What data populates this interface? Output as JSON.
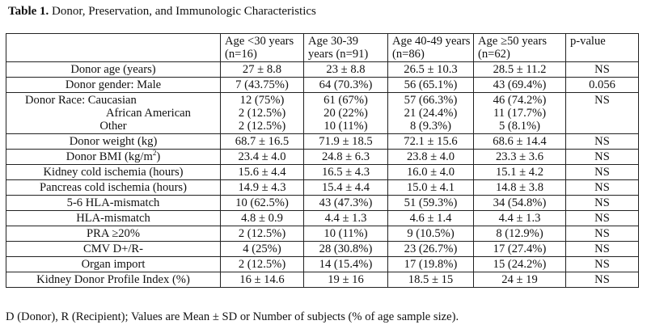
{
  "caption": {
    "label": "Table 1.",
    "text": "Donor, Preservation, and Immunologic Characteristics"
  },
  "columns": [
    "",
    "Age <30 years (n=16)",
    "Age 30-39 years (n=91)",
    "Age 40-49 years (n=86)",
    "Age ≥50 years (n=62)",
    "p-value"
  ],
  "rows": [
    {
      "label": "Donor age (years)",
      "cells": [
        "27 ± 8.8",
        "23 ± 8.8",
        "26.5 ± 10.3",
        "28.5 ± 11.2",
        "NS"
      ]
    },
    {
      "label": "Donor gender: Male",
      "cells": [
        "7 (43.75%)",
        "64 (70.3%)",
        "56 (65.1%)",
        "43 (69.4%)",
        "0.056"
      ]
    },
    {
      "label": "race"
    },
    {
      "label": "Donor weight (kg)",
      "cells": [
        "68.7 ± 16.5",
        "71.9 ± 18.5",
        "72.1 ± 15.6",
        "68.6 ± 14.4",
        "NS"
      ]
    },
    {
      "label": "Donor BMI (kg/m2)",
      "cells": [
        "23.4 ± 4.0",
        "24.8 ± 6.3",
        "23.8 ± 4.0",
        "23.3 ± 3.6",
        "NS"
      ]
    },
    {
      "label": "Kidney cold ischemia (hours)",
      "cells": [
        "15.6 ± 4.4",
        "16.5 ± 4.3",
        "16.0 ± 4.0",
        "15.1 ± 4.2",
        "NS"
      ]
    },
    {
      "label": "Pancreas cold ischemia (hours)",
      "cells": [
        "14.9 ± 4.3",
        "15.4 ± 4.4",
        "15.0 ± 4.1",
        "14.8 ± 3.8",
        "NS"
      ]
    },
    {
      "label": "5-6 HLA-mismatch",
      "cells": [
        "10 (62.5%)",
        "43 (47.3%)",
        "51 (59.3%)",
        "34 (54.8%)",
        "NS"
      ]
    },
    {
      "label": "HLA-mismatch",
      "cells": [
        "4.8 ± 0.9",
        "4.4 ± 1.3",
        "4.6 ± 1.4",
        "4.4 ± 1.3",
        "NS"
      ]
    },
    {
      "label": "PRA ≥20%",
      "cells": [
        "2 (12.5%)",
        "10 (11%)",
        "9 (10.5%)",
        "8 (12.9%)",
        "NS"
      ]
    },
    {
      "label": "CMV D+/R-",
      "cells": [
        "4 (25%)",
        "28 (30.8%)",
        "23 (26.7%)",
        "17 (27.4%)",
        "NS"
      ]
    },
    {
      "label": "Organ import",
      "cells": [
        "2 (12.5%)",
        "14 (15.4%)",
        "17 (19.8%)",
        "15 (24.2%)",
        "NS"
      ]
    },
    {
      "label": "Kidney Donor Profile Index (%)",
      "cells": [
        "16 ± 14.6",
        "19 ± 16",
        "18.5 ± 15",
        "24 ± 19",
        "NS"
      ]
    }
  ],
  "race": {
    "labels": [
      "Donor Race: Caucasian",
      "African American",
      "Other"
    ],
    "cells": [
      [
        "12 (75%)",
        "2 (12.5%)",
        "2 (12.5%)"
      ],
      [
        "61 (67%)",
        "20 (22%)",
        "10 (11%)"
      ],
      [
        "57 (66.3%)",
        "21 (24.4%)",
        "8 (9.3%)"
      ],
      [
        "46 (74.2%)",
        "11 (17.7%)",
        "5 (8.1%)"
      ]
    ],
    "p": "NS"
  },
  "footnote": "D (Donor), R (Recipient); Values are Mean ± SD or Number of subjects (% of age sample size)."
}
